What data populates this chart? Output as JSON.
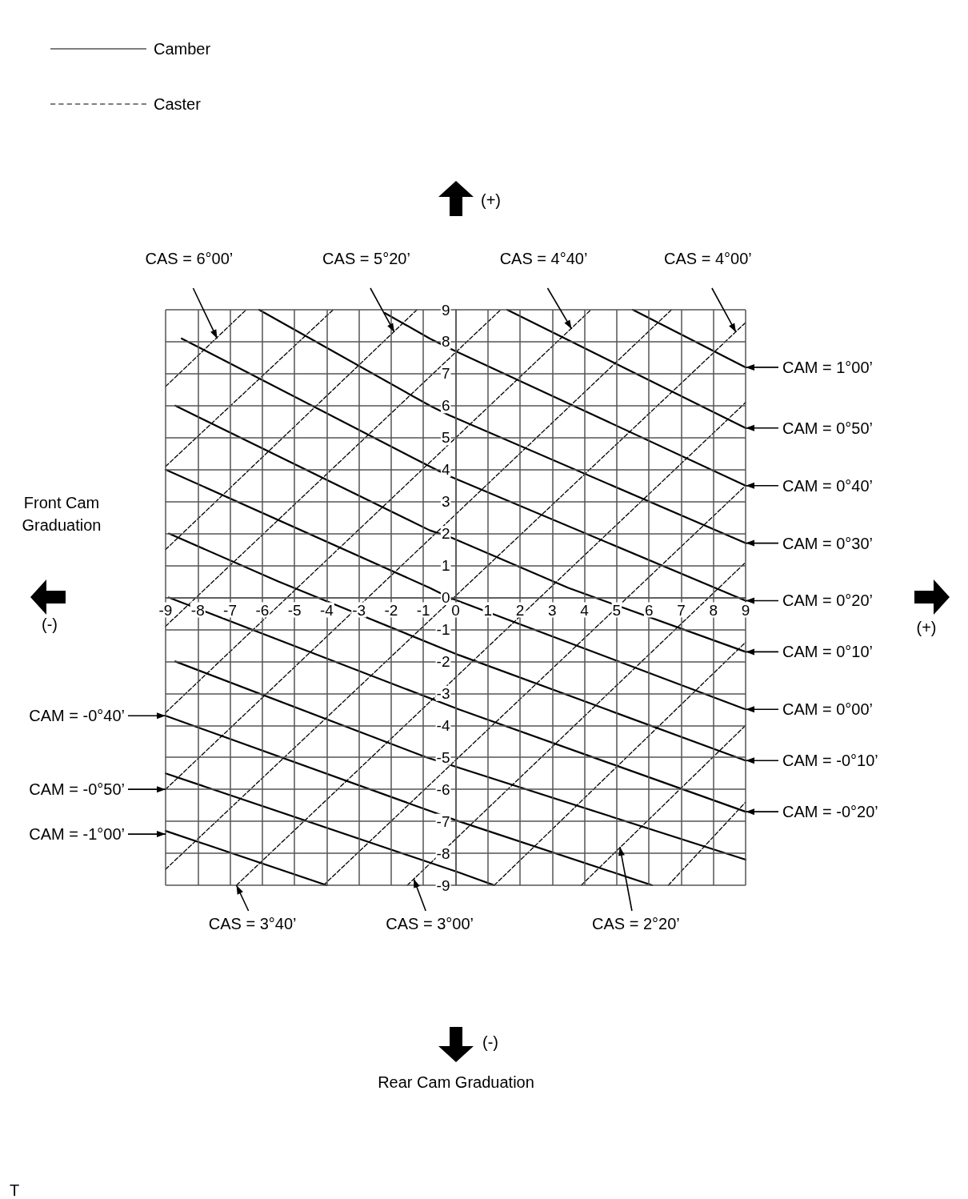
{
  "chart_data": {
    "type": "line",
    "xlim": [
      -9,
      9
    ],
    "ylim": [
      -9,
      9
    ],
    "xticks": [
      -9,
      -8,
      -7,
      -6,
      -5,
      -4,
      -3,
      -2,
      -1,
      0,
      1,
      2,
      3,
      4,
      5,
      6,
      7,
      8,
      9
    ],
    "yticks": [
      -9,
      -8,
      -7,
      -6,
      -5,
      -4,
      -3,
      -2,
      -1,
      0,
      1,
      2,
      3,
      4,
      5,
      6,
      7,
      8,
      9
    ],
    "grid": true,
    "legend": "top left",
    "series": [
      {
        "name": "Camber",
        "color": "#000000",
        "line_style": "solid",
        "x": [
          5.5,
          9
        ],
        "values": [
          9,
          7.2
        ]
      },
      {
        "color": "#000000",
        "line_style": "solid",
        "x": [
          1.6,
          9
        ],
        "values": [
          9,
          5.3
        ]
      },
      {
        "color": "#000000",
        "line_style": "solid",
        "x": [
          -2.2,
          -0.8,
          -0.2,
          9
        ],
        "values": [
          8.9,
          8.1,
          7.8,
          3.5
        ]
      },
      {
        "color": "#000000",
        "line_style": "solid",
        "x": [
          -6.1,
          -0.8,
          -0.2,
          9
        ],
        "values": [
          9,
          6,
          5.7,
          1.7
        ]
      },
      {
        "color": "#000000",
        "line_style": "solid",
        "x": [
          -8.5,
          -0.8,
          -0.2,
          9
        ],
        "values": [
          8.1,
          4.1,
          3.8,
          -0.1
        ]
      },
      {
        "color": "#000000",
        "line_style": "solid",
        "x": [
          -8.7,
          -0.8,
          -0.2,
          3.5,
          9
        ],
        "values": [
          6,
          2.1,
          1.9,
          0.3,
          -1.7
        ]
      },
      {
        "color": "#000000",
        "line_style": "solid",
        "x": [
          -9,
          -0.8,
          -0.2,
          9
        ],
        "values": [
          4,
          0.3,
          0,
          -3.5
        ]
      },
      {
        "color": "#000000",
        "line_style": "solid",
        "x": [
          -8.9,
          -5.5,
          0.1,
          9
        ],
        "values": [
          2,
          0.5,
          -1.8,
          -5.1
        ]
      },
      {
        "color": "#000000",
        "line_style": "solid",
        "x": [
          -8.9,
          0.1,
          9
        ],
        "values": [
          0,
          -3.5,
          -6.7
        ]
      },
      {
        "color": "#000000",
        "line_style": "solid",
        "x": [
          -8.7,
          -0.9,
          9
        ],
        "values": [
          -2,
          -5,
          -8.2
        ]
      },
      {
        "color": "#000000",
        "line_style": "solid",
        "x": [
          -9,
          0.1,
          6.1
        ],
        "values": [
          -3.7,
          -7,
          -9
        ]
      },
      {
        "color": "#000000",
        "line_style": "solid",
        "x": [
          -9,
          0.1,
          1.2
        ],
        "values": [
          -5.5,
          -8.6,
          -9
        ]
      },
      {
        "color": "#000000",
        "line_style": "solid",
        "x": [
          -9,
          -4
        ],
        "values": [
          -7.3,
          -9
        ]
      },
      {
        "name": "Caster",
        "color": "#000000",
        "line_style": "dashed",
        "x": [
          -9,
          -6.5
        ],
        "values": [
          6.6,
          9
        ]
      },
      {
        "color": "#000000",
        "line_style": "dashed",
        "x": [
          -9,
          -3.8
        ],
        "values": [
          4.1,
          9
        ]
      },
      {
        "color": "#000000",
        "line_style": "dashed",
        "x": [
          -9,
          -1.2
        ],
        "values": [
          1.5,
          9
        ]
      },
      {
        "color": "#000000",
        "line_style": "dashed",
        "x": [
          -9,
          1.4
        ],
        "values": [
          -0.9,
          9
        ]
      },
      {
        "color": "#000000",
        "line_style": "dashed",
        "x": [
          -9,
          4.2
        ],
        "values": [
          -3.6,
          9
        ]
      },
      {
        "color": "#000000",
        "line_style": "dashed",
        "x": [
          -9,
          6.7
        ],
        "values": [
          -6,
          9
        ]
      },
      {
        "color": "#000000",
        "line_style": "dashed",
        "x": [
          -9,
          9
        ],
        "values": [
          -8.5,
          8.6
        ]
      },
      {
        "color": "#000000",
        "line_style": "dashed",
        "x": [
          -6.8,
          9
        ],
        "values": [
          -9,
          6.1
        ]
      },
      {
        "color": "#000000",
        "line_style": "dashed",
        "x": [
          -4.1,
          9
        ],
        "values": [
          -9,
          3.5
        ]
      },
      {
        "color": "#000000",
        "line_style": "dashed",
        "x": [
          -1.5,
          9
        ],
        "values": [
          -9,
          1.1
        ]
      },
      {
        "color": "#000000",
        "line_style": "dashed",
        "x": [
          1.2,
          9
        ],
        "values": [
          -9,
          -1.4
        ]
      },
      {
        "color": "#000000",
        "line_style": "dashed",
        "x": [
          3.9,
          9
        ],
        "values": [
          -9,
          -4
        ]
      },
      {
        "color": "#000000",
        "line_style": "dashed",
        "x": [
          6.6,
          9
        ],
        "values": [
          -9,
          -6.4
        ]
      }
    ],
    "annotations": [
      "(+)",
      "(-)",
      "(+)",
      "(-)",
      "T",
      "Front Cam Graduation",
      "Rear Cam Graduation",
      {
        "text": "CAS = 6°00’",
        "x": -7.4,
        "y": 8.1
      },
      {
        "text": "CAS = 5°20’",
        "x": -1.9,
        "y": 8.3
      },
      {
        "text": "CAS = 4°40’",
        "x": 3.6,
        "y": 8.4
      },
      {
        "text": "CAS = 4°00’",
        "x": 8.7,
        "y": 8.3
      },
      {
        "text": "CAM = 1°00’",
        "x": 9,
        "y": 7.2
      },
      {
        "text": "CAM = 0°50’",
        "x": 9,
        "y": 5.3
      },
      {
        "text": "CAM = 0°40’",
        "x": 9,
        "y": 3.5
      },
      {
        "text": "CAM = 0°30’",
        "x": 9,
        "y": 1.7
      },
      {
        "text": "CAM = 0°20’",
        "x": 9,
        "y": -0.1
      },
      {
        "text": "CAM = 0°10’",
        "x": 9,
        "y": -1.7
      },
      {
        "text": "CAM = 0°00’",
        "x": 9,
        "y": -3.5
      },
      {
        "text": "CAM = -0°10’",
        "x": 9,
        "y": -5.1
      },
      {
        "text": "CAM = -0°20’",
        "x": 9,
        "y": -6.7
      },
      {
        "text": "CAM = -0°40’",
        "x": -9,
        "y": -3.7
      },
      {
        "text": "CAM = -0°50’",
        "x": -9,
        "y": -6
      },
      {
        "text": "CAM = -1°00’",
        "x": -9,
        "y": -7.4
      },
      {
        "text": "CAS = 3°40’",
        "x": -6.8,
        "y": -9
      },
      {
        "text": "CAS = 3°00’",
        "x": -1.3,
        "y": -8.8
      },
      {
        "text": "CAS = 2°20’",
        "x": 5.1,
        "y": -7.8
      }
    ]
  }
}
